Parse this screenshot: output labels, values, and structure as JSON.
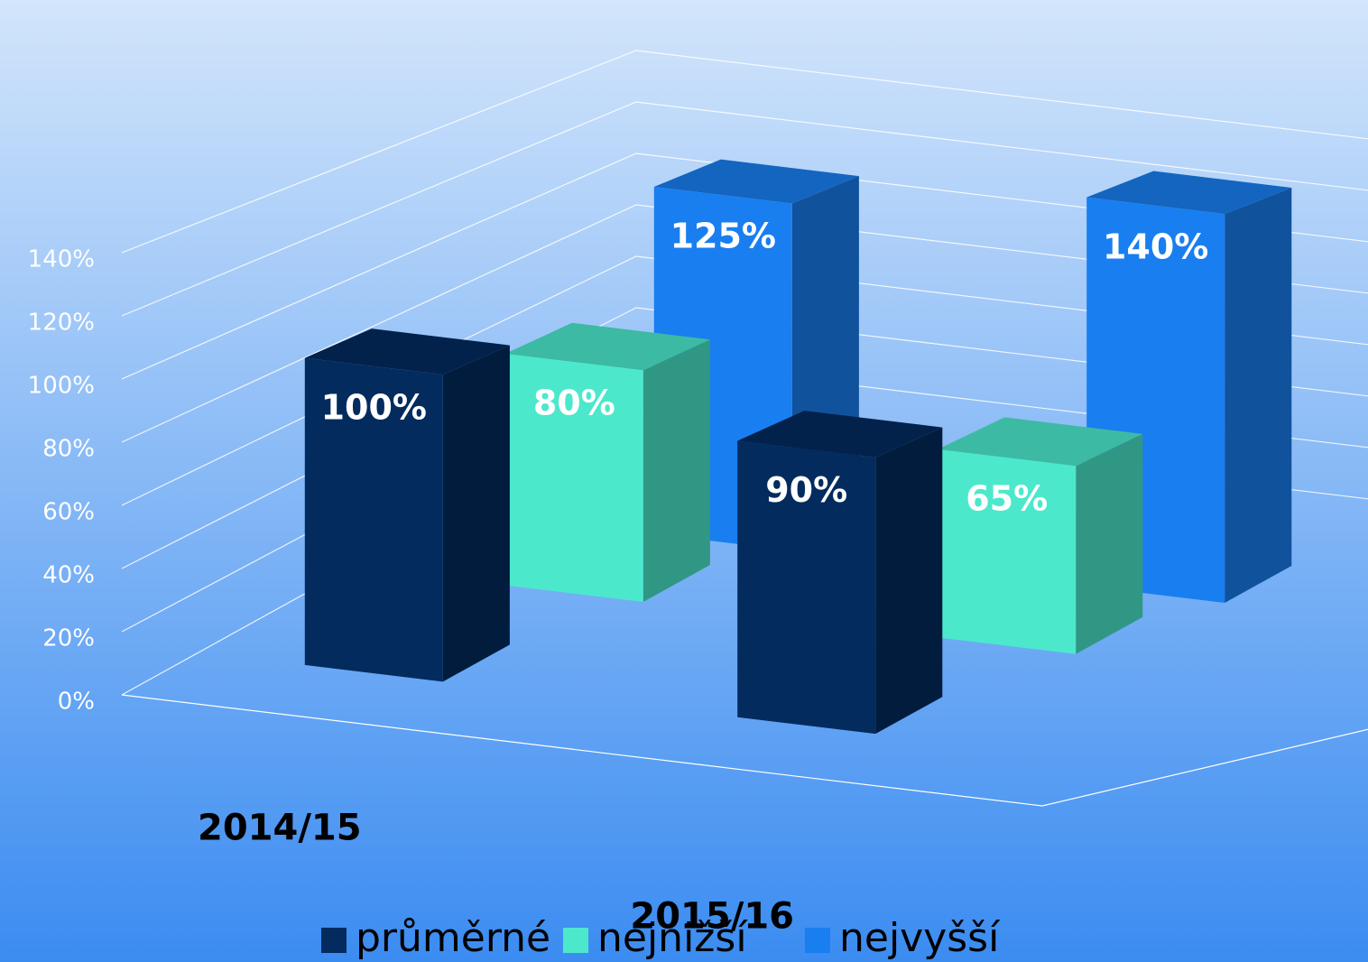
{
  "chart_data": {
    "type": "bar3d",
    "categories": [
      "2014/15",
      "2015/16"
    ],
    "series": [
      {
        "name": "průměrné",
        "color": "#032b5e",
        "values": [
          100,
          90
        ],
        "value_labels": [
          "100%",
          "90%"
        ]
      },
      {
        "name": "nejnižší",
        "color": "#4ce8cc",
        "values": [
          80,
          65
        ],
        "value_labels": [
          "80%",
          "65%"
        ]
      },
      {
        "name": "nejvyšší",
        "color": "#197ef0",
        "values": [
          125,
          140
        ],
        "value_labels": [
          "125%",
          "140%"
        ]
      }
    ],
    "ylim": [
      0,
      140
    ],
    "yticks": [
      {
        "value": 0,
        "label": "0%"
      },
      {
        "value": 20,
        "label": "20%"
      },
      {
        "value": 40,
        "label": "40%"
      },
      {
        "value": 60,
        "label": "60%"
      },
      {
        "value": 80,
        "label": "80%"
      },
      {
        "value": 100,
        "label": "100%"
      },
      {
        "value": 120,
        "label": "120%"
      },
      {
        "value": 140,
        "label": "140%"
      }
    ],
    "grid": true,
    "legend": "bottom"
  }
}
